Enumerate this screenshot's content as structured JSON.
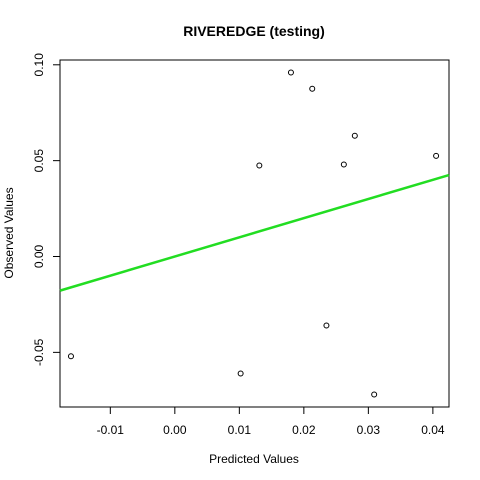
{
  "chart_data": {
    "type": "scatter",
    "title": "RIVEREDGE (testing)",
    "xlabel": "Predicted Values",
    "ylabel": "Observed Values",
    "xlim": [
      -0.0178,
      0.0425
    ],
    "ylim": [
      -0.0785,
      0.1025
    ],
    "xticks": [
      -0.01,
      0.0,
      0.01,
      0.02,
      0.03,
      0.04
    ],
    "xtick_labels": [
      "-0.01",
      "0.00",
      "0.01",
      "0.02",
      "0.03",
      "0.04"
    ],
    "yticks": [
      -0.05,
      0.0,
      0.05,
      0.1
    ],
    "ytick_labels": [
      "-0.05",
      "0.00",
      "0.05",
      "0.10"
    ],
    "points": [
      {
        "x": -0.0161,
        "y": -0.052
      },
      {
        "x": 0.0102,
        "y": -0.061
      },
      {
        "x": 0.0131,
        "y": 0.0475
      },
      {
        "x": 0.018,
        "y": 0.096
      },
      {
        "x": 0.0213,
        "y": 0.0875
      },
      {
        "x": 0.0235,
        "y": -0.036
      },
      {
        "x": 0.0262,
        "y": 0.048
      },
      {
        "x": 0.0279,
        "y": 0.063
      },
      {
        "x": 0.0309,
        "y": -0.072
      },
      {
        "x": 0.0405,
        "y": 0.0525
      }
    ],
    "fit_line": {
      "x": [
        -0.0178,
        0.0425
      ],
      "y": [
        -0.0178,
        0.0425
      ],
      "color": "#22dd22"
    },
    "point_color": "#000000",
    "grid": false,
    "legend": "none"
  }
}
